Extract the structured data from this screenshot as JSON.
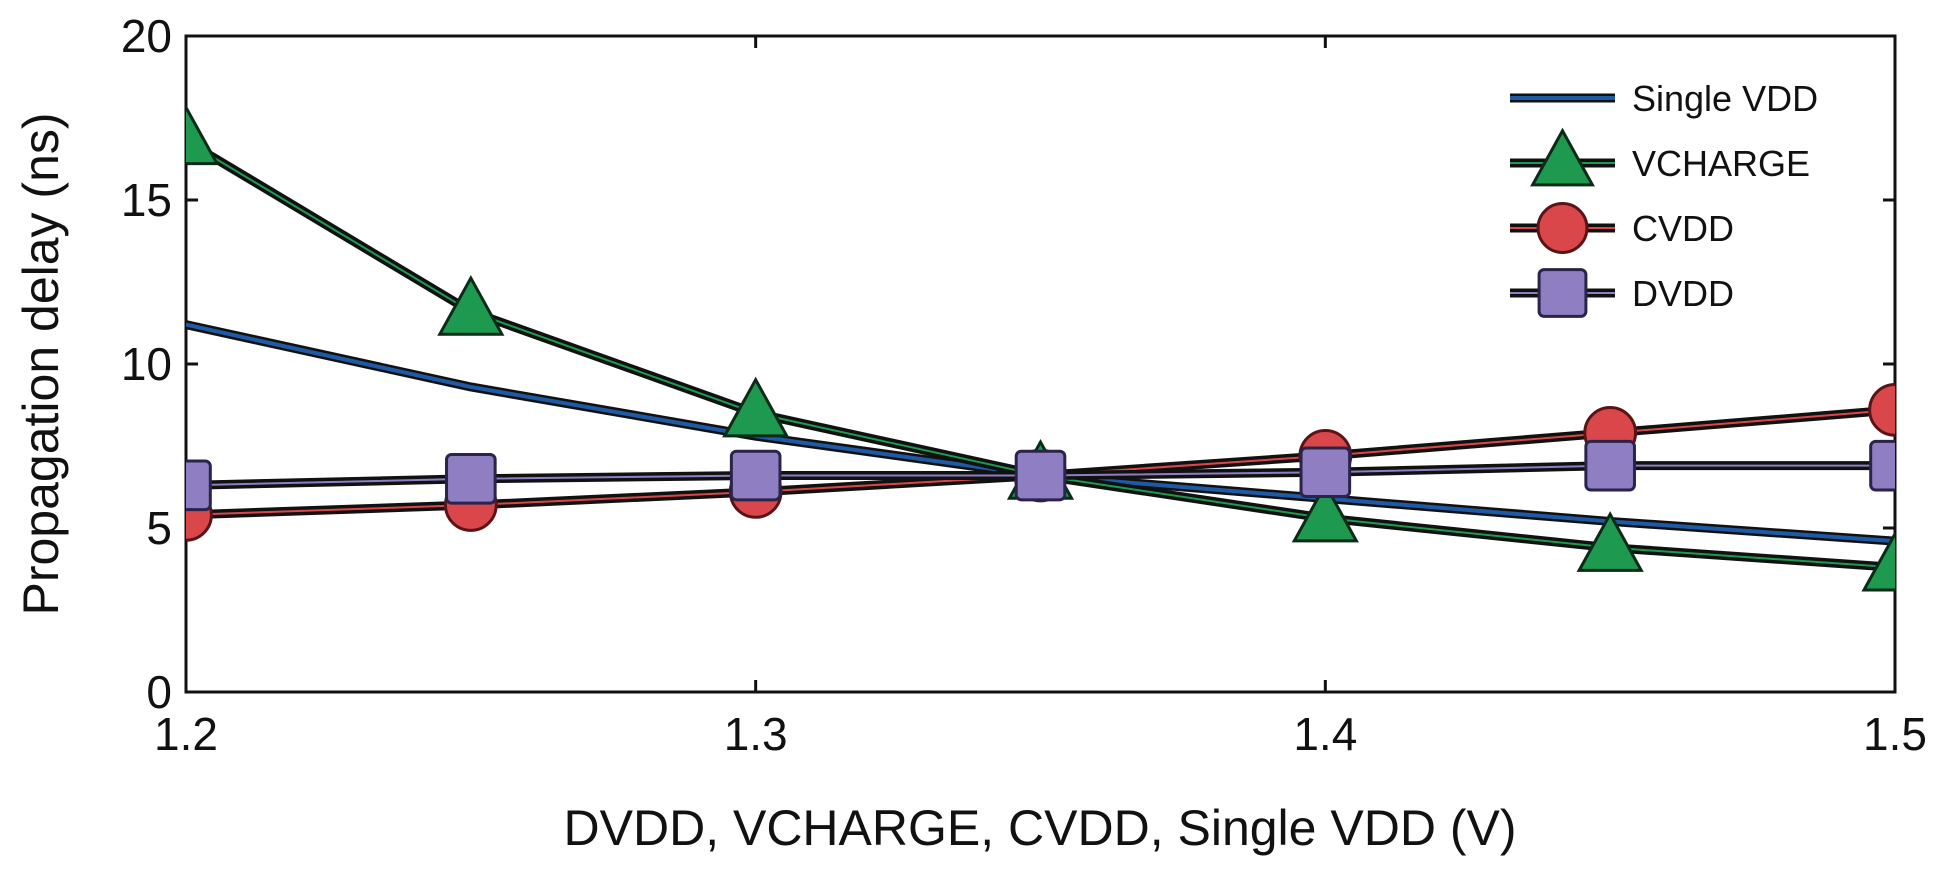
{
  "chart_data": {
    "type": "line",
    "title": "",
    "xlabel": "DVDD, VCHARGE, CVDD, Single VDD (V)",
    "ylabel": "Propagation delay (ns)",
    "xlim": [
      1.2,
      1.5
    ],
    "ylim": [
      0,
      20
    ],
    "xticks": [
      1.2,
      1.3,
      1.4,
      1.5
    ],
    "xtick_labels": [
      "1.2",
      "1.3",
      "1.4",
      "1.5"
    ],
    "yticks": [
      0,
      5,
      10,
      15,
      20
    ],
    "ytick_labels": [
      "0",
      "5",
      "10",
      "15",
      "20"
    ],
    "grid": false,
    "legend_position": "top-right",
    "x": [
      1.2,
      1.25,
      1.3,
      1.35,
      1.4,
      1.45,
      1.5
    ],
    "series": [
      {
        "name": "Single VDD",
        "marker": "none",
        "color": "#1f5aa6",
        "values": [
          11.2,
          9.3,
          7.8,
          6.6,
          5.9,
          5.2,
          4.6
        ]
      },
      {
        "name": "VCHARGE",
        "marker": "triangle",
        "color": "#1e9a50",
        "values": [
          16.8,
          11.6,
          8.5,
          6.6,
          5.3,
          4.4,
          3.8
        ]
      },
      {
        "name": "CVDD",
        "marker": "circle",
        "color": "#d9474b",
        "values": [
          5.4,
          5.7,
          6.1,
          6.6,
          7.2,
          7.9,
          8.6
        ]
      },
      {
        "name": "DVDD",
        "marker": "square",
        "color": "#8f7fc2",
        "values": [
          6.3,
          6.5,
          6.6,
          6.6,
          6.7,
          6.9,
          6.9
        ]
      }
    ]
  }
}
